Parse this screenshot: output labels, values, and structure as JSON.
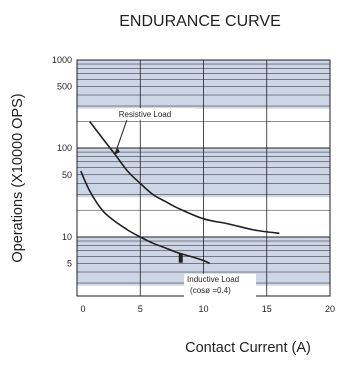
{
  "chart_data": {
    "type": "line",
    "title": "ENDURANCE CURVE",
    "xlabel": "Contact Current (A)",
    "ylabel": "Operations (X10000 OPS)",
    "x_ticks": [
      "0",
      "5",
      "10",
      "15",
      "20"
    ],
    "y_ticks": [
      "1000",
      "500",
      "100",
      "50",
      "10",
      "5"
    ],
    "xlim": [
      0,
      20
    ],
    "ylim": [
      1,
      1000
    ],
    "y_scale": "log",
    "grid": true,
    "series": [
      {
        "name": "Resistive Load",
        "points": [
          [
            1,
            200
          ],
          [
            2,
            130
          ],
          [
            3,
            85
          ],
          [
            4,
            55
          ],
          [
            5,
            40
          ],
          [
            6,
            30
          ],
          [
            7,
            25
          ],
          [
            8,
            21
          ],
          [
            10,
            16
          ],
          [
            12,
            14
          ],
          [
            14,
            12
          ],
          [
            16,
            11
          ]
        ]
      },
      {
        "name": "Inductive Load (cosø =0.4)",
        "points": [
          [
            0.3,
            55
          ],
          [
            1,
            33
          ],
          [
            2,
            20
          ],
          [
            3,
            15
          ],
          [
            4,
            12
          ],
          [
            5,
            10
          ],
          [
            6,
            8.5
          ],
          [
            7,
            7.5
          ],
          [
            8,
            6.6
          ],
          [
            9,
            6
          ],
          [
            10,
            5.4
          ],
          [
            10.5,
            5
          ]
        ]
      }
    ],
    "annotations": [
      {
        "text": "Resistive Load",
        "series": 0,
        "x": 3,
        "y": 85
      },
      {
        "lines": [
          "Inductive Load",
          "(cosø =0.4)"
        ],
        "series": 1,
        "x": 8.2,
        "y": 6.8
      }
    ],
    "colors": {
      "band": "#cdd6e6",
      "line": "#231f20",
      "grid": "#231f20"
    }
  }
}
